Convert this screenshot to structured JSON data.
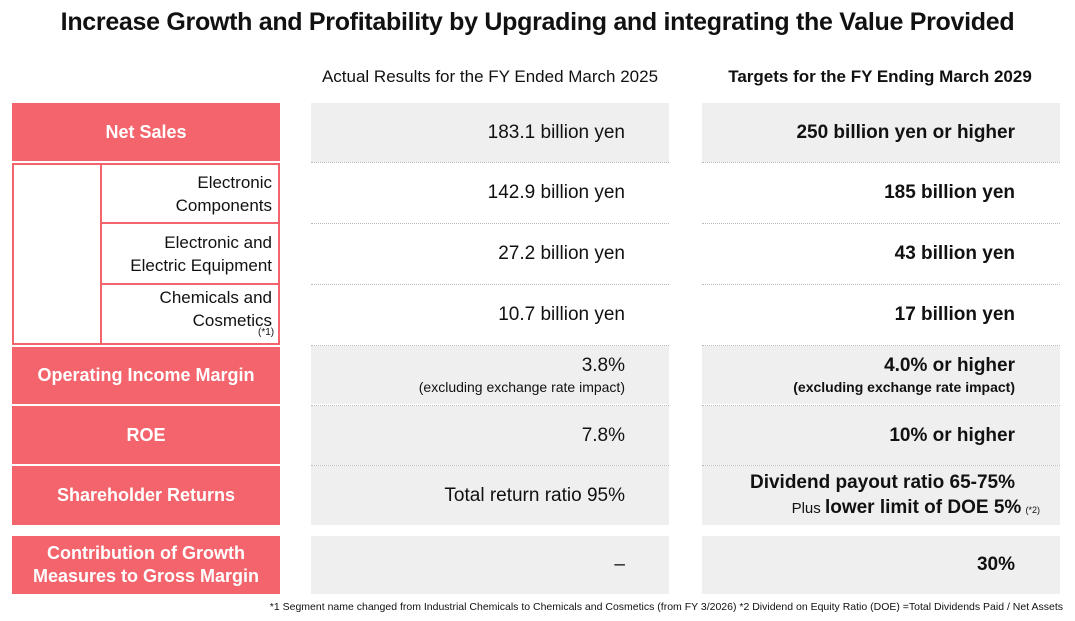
{
  "title": "Increase Growth and Profitability by Upgrading and integrating the Value Provided",
  "columns": {
    "actual": "Actual Results for the FY Ended March 2025",
    "target": "Targets for the FY Ending March 2029"
  },
  "rows": {
    "net_sales": {
      "label": "Net Sales",
      "actual": "183.1 billion  yen",
      "target": "250 billion  yen  or higher"
    },
    "electronic_components": {
      "label_line1": "Electronic",
      "label_line2": "Components",
      "actual": "142.9 billion  yen",
      "target": "185 billion  yen"
    },
    "electronic_equipment": {
      "label_line1": "Electronic and",
      "label_line2": "Electric Equipment",
      "actual": "27.2 billion  yen",
      "target": "43 billion  yen"
    },
    "chemicals_cosmetics": {
      "label_line1": "Chemicals and",
      "label_line2": "Cosmetics",
      "note": "(*1)",
      "actual": "10.7 billion  yen",
      "target": "17 billion  yen"
    },
    "operating_income": {
      "label": "Operating Income Margin",
      "actual": "3.8%",
      "actual_note": "(excluding exchange rate impact)",
      "target": "4.0%  or higher",
      "target_note": "(excluding exchange rate impact)"
    },
    "roe": {
      "label": "ROE",
      "actual": "7.8%",
      "target": "10%  or higher"
    },
    "shareholder_returns": {
      "label": "Shareholder Returns",
      "actual": "Total return ratio 95%",
      "target": "Dividend  payout ratio 65-75%",
      "target_plus": "Plus",
      "target_bold": "lower  limit  of DOE 5%",
      "target_note": "(*2)"
    },
    "contribution": {
      "label_line1": "Contribution of Growth",
      "label_line2": "Measures to Gross Margin",
      "actual": "–",
      "target": "30%"
    }
  },
  "footnote": "*1 Segment name changed from Industrial Chemicals to Chemicals and Cosmetics (from FY 3/2026)   *2 Dividend on Equity Ratio (DOE) =Total Dividends Paid / Net Assets",
  "colors": {
    "accent": "#f4646c",
    "cell_bg": "#efefef"
  }
}
